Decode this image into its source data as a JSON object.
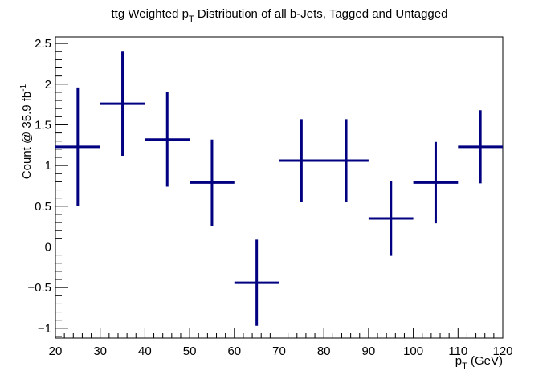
{
  "chart_data": {
    "type": "scatter",
    "style": "histogram-with-error-bars",
    "title": {
      "prefix": "ttg Weighted p",
      "subscript": "T",
      "suffix": " Distribution of all b-Jets, Tagged and Untagged"
    },
    "xlabel": {
      "main": "p",
      "subscript": "T",
      "rest": " (GeV)"
    },
    "ylabel": {
      "main": "Count @ 35.9 fb",
      "superscript": "-1"
    },
    "xlim": [
      20,
      120
    ],
    "ylim": [
      -1.12,
      2.58
    ],
    "x_ticks": [
      20,
      30,
      40,
      50,
      60,
      70,
      80,
      90,
      100,
      110,
      120
    ],
    "x_tick_labels": [
      "20",
      "30",
      "40",
      "50",
      "60",
      "70",
      "80",
      "90",
      "100",
      "110",
      "120"
    ],
    "y_ticks": [
      -1,
      -0.5,
      0,
      0.5,
      1,
      1.5,
      2,
      2.5
    ],
    "y_tick_labels": [
      "−1",
      "−0.5",
      "0",
      "0.5",
      "1",
      "1.5",
      "2",
      "2.5"
    ],
    "grid": false,
    "legend": "none",
    "color": "#000080",
    "points": [
      {
        "x_low": 20,
        "x_high": 30,
        "x": 25,
        "y": 1.23,
        "err": 0.73
      },
      {
        "x_low": 30,
        "x_high": 40,
        "x": 35,
        "y": 1.76,
        "err": 0.64
      },
      {
        "x_low": 40,
        "x_high": 50,
        "x": 45,
        "y": 1.32,
        "err": 0.58
      },
      {
        "x_low": 50,
        "x_high": 60,
        "x": 55,
        "y": 0.79,
        "err": 0.53
      },
      {
        "x_low": 60,
        "x_high": 70,
        "x": 65,
        "y": -0.44,
        "err": 0.53
      },
      {
        "x_low": 70,
        "x_high": 80,
        "x": 75,
        "y": 1.06,
        "err": 0.51
      },
      {
        "x_low": 80,
        "x_high": 90,
        "x": 85,
        "y": 1.06,
        "err": 0.51
      },
      {
        "x_low": 90,
        "x_high": 100,
        "x": 95,
        "y": 0.35,
        "err": 0.46
      },
      {
        "x_low": 100,
        "x_high": 110,
        "x": 105,
        "y": 0.79,
        "err": 0.5
      },
      {
        "x_low": 110,
        "x_high": 120,
        "x": 115,
        "y": 1.23,
        "err": 0.45
      }
    ]
  }
}
